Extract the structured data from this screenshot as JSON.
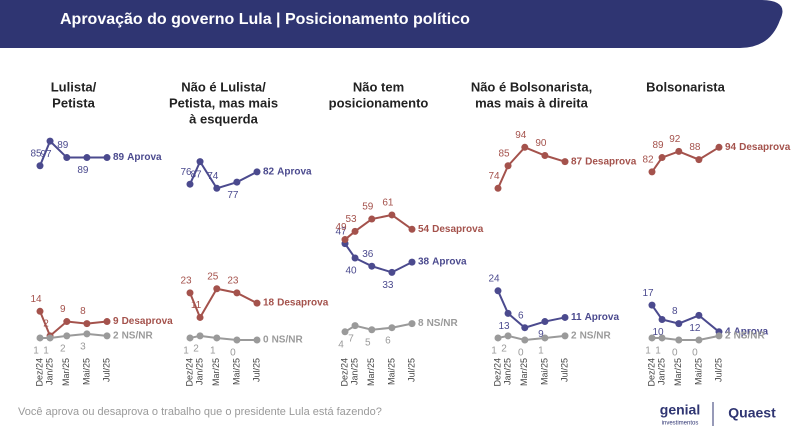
{
  "title": "Aprovação do governo Lula | Posicionamento político",
  "footnote": "Você aprova ou desaprova o trabalho que o presidente Lula está fazendo?",
  "logos": [
    "genial",
    "investimentos",
    "Quaest"
  ],
  "chart_data": [
    {
      "type": "line",
      "title": [
        "Lulista/",
        "Petista"
      ],
      "categories": [
        "Dez/24",
        "Jan/25",
        "Mar/25",
        "Mai/25",
        "Jul/25"
      ],
      "ylim": [
        0,
        100
      ],
      "series": [
        {
          "name": "Aprova",
          "color": "#4b4a8e",
          "values": [
            85,
            97,
            89,
            89,
            89
          ]
        },
        {
          "name": "Desaprova",
          "color": "#a4524c",
          "values": [
            14,
            2,
            9,
            8,
            9
          ]
        },
        {
          "name": "NS/NR",
          "color": "#9a9a9a",
          "values": [
            1,
            1,
            2,
            3,
            2
          ]
        }
      ]
    },
    {
      "type": "line",
      "title": [
        "Não é Lulista/",
        "Petista, mas mais",
        "à esquerda"
      ],
      "categories": [
        "Dez/24",
        "Jan/25",
        "Mar/25",
        "Mai/25",
        "Jul/25"
      ],
      "ylim": [
        0,
        100
      ],
      "series": [
        {
          "name": "Aprova",
          "color": "#4b4a8e",
          "values": [
            76,
            87,
            74,
            77,
            82
          ]
        },
        {
          "name": "Desaprova",
          "color": "#a4524c",
          "values": [
            23,
            11,
            25,
            23,
            18
          ]
        },
        {
          "name": "NS/NR",
          "color": "#9a9a9a",
          "values": [
            1,
            2,
            1,
            0,
            0
          ]
        }
      ]
    },
    {
      "type": "line",
      "title": [
        "Não tem",
        "posicionamento"
      ],
      "categories": [
        "Dez/24",
        "Jan/25",
        "Mar/25",
        "Mai/25",
        "Jul/25"
      ],
      "ylim": [
        0,
        100
      ],
      "series": [
        {
          "name": "Aprova",
          "color": "#4b4a8e",
          "values": [
            47,
            40,
            36,
            33,
            38
          ]
        },
        {
          "name": "Desaprova",
          "color": "#a4524c",
          "values": [
            49,
            53,
            59,
            61,
            54
          ]
        },
        {
          "name": "NS/NR",
          "color": "#9a9a9a",
          "values": [
            4,
            7,
            5,
            6,
            8
          ]
        }
      ]
    },
    {
      "type": "line",
      "title": [
        "Não é Bolsonarista,",
        "mas mais à direita"
      ],
      "categories": [
        "Dez/24",
        "Jan/25",
        "Mar/25",
        "Mai/25",
        "Jul/25"
      ],
      "ylim": [
        0,
        100
      ],
      "series": [
        {
          "name": "Aprova",
          "color": "#4b4a8e",
          "values": [
            24,
            13,
            6,
            9,
            11
          ]
        },
        {
          "name": "Desaprova",
          "color": "#a4524c",
          "values": [
            74,
            85,
            94,
            90,
            87
          ]
        },
        {
          "name": "NS/NR",
          "color": "#9a9a9a",
          "values": [
            1,
            2,
            0,
            1,
            2
          ]
        }
      ]
    },
    {
      "type": "line",
      "title": [
        "Bolsonarista"
      ],
      "categories": [
        "Dez/24",
        "Jan/25",
        "Mar/25",
        "Mai/25",
        "Jul/25"
      ],
      "ylim": [
        0,
        100
      ],
      "series": [
        {
          "name": "Aprova",
          "color": "#4b4a8e",
          "values": [
            17,
            10,
            8,
            12,
            4
          ]
        },
        {
          "name": "Desaprova",
          "color": "#a4524c",
          "values": [
            82,
            89,
            92,
            88,
            94
          ]
        },
        {
          "name": "NS/NR",
          "color": "#9a9a9a",
          "values": [
            1,
            1,
            0,
            0,
            2
          ]
        }
      ]
    }
  ]
}
